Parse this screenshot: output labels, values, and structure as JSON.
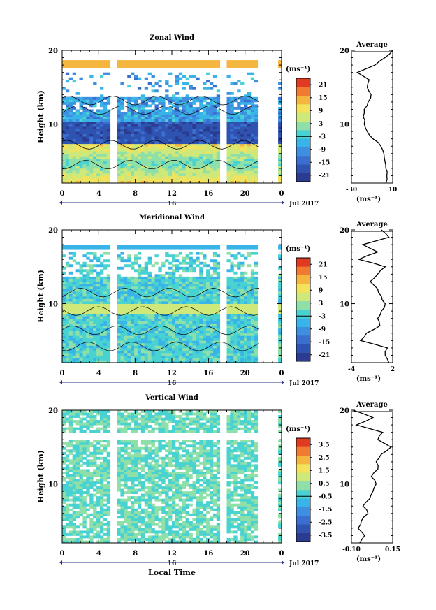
{
  "date_label": "Jul 2017",
  "time_axis_title": "Local Time",
  "day_label": "16",
  "time_ticks": [
    "0",
    "4",
    "8",
    "12",
    "16",
    "20",
    "0"
  ],
  "height_title": "Height (km)",
  "unit_label": "(ms⁻¹)",
  "average_title": "Average",
  "chart_data": [
    {
      "type": "heatmap",
      "title": "Zonal Wind",
      "xlabel": "",
      "ylabel": "Height (km)",
      "xlim": [
        0,
        24
      ],
      "ylim": [
        2,
        20
      ],
      "y_ticks": [
        "20",
        "10"
      ],
      "colorbar": {
        "unit": "(ms⁻¹)",
        "ticks": [
          "21",
          "15",
          "9",
          "3",
          "-3",
          "-9",
          "-15",
          "-21"
        ],
        "range": [
          -24,
          24
        ]
      },
      "profile": {
        "title": "Average",
        "xlabel": "(ms⁻¹)",
        "xlim": [
          -30,
          12
        ],
        "x_ticks": [
          "-30",
          "10"
        ],
        "y_ticks": [
          "20",
          "10"
        ],
        "heights": [
          2,
          3,
          4,
          5,
          6,
          7,
          8,
          9,
          10,
          11,
          12,
          13,
          14,
          15,
          16,
          17,
          18,
          19,
          20
        ],
        "values": [
          5,
          6,
          5,
          4,
          3,
          0,
          -8,
          -14,
          -17,
          -18,
          -17,
          -13,
          -10,
          -14,
          -12,
          -24,
          -6,
          4,
          12
        ]
      }
    },
    {
      "type": "heatmap",
      "title": "Meridional Wind",
      "xlabel": "",
      "ylabel": "Height (km)",
      "xlim": [
        0,
        24
      ],
      "ylim": [
        2,
        20
      ],
      "y_ticks": [
        "20",
        "10"
      ],
      "colorbar": {
        "unit": "(ms⁻¹)",
        "ticks": [
          "21",
          "15",
          "9",
          "3",
          "-3",
          "-9",
          "-15",
          "-21"
        ],
        "range": [
          -24,
          24
        ]
      },
      "profile": {
        "title": "Average",
        "xlabel": "(ms⁻¹)",
        "xlim": [
          -3,
          2.5
        ],
        "x_ticks": [
          "-4",
          "2"
        ],
        "y_ticks": [
          "20",
          "10"
        ],
        "heights": [
          2,
          3,
          4,
          5,
          6,
          7,
          8,
          9,
          10,
          11,
          12,
          13,
          14,
          15,
          16,
          17,
          18,
          19,
          20
        ],
        "values": [
          2,
          1.5,
          1.8,
          -1.8,
          -1.0,
          0.8,
          0.5,
          1.0,
          1.5,
          1.0,
          0.5,
          -0.5,
          0.5,
          1.5,
          -2.0,
          0.5,
          -1.5,
          2.0,
          1.0
        ]
      }
    },
    {
      "type": "heatmap",
      "title": "Vertical Wind",
      "xlabel": "Local Time",
      "ylabel": "Height (km)",
      "xlim": [
        0,
        24
      ],
      "ylim": [
        2,
        20
      ],
      "y_ticks": [
        "20",
        "10"
      ],
      "colorbar": {
        "unit": "(ms⁻¹)",
        "ticks": [
          "3.5",
          "2.5",
          "1.5",
          "0.5",
          "-0.5",
          "-1.5",
          "-2.5",
          "-3.5"
        ],
        "range": [
          -4,
          4
        ]
      },
      "profile": {
        "title": "Average",
        "xlabel": "(ms⁻¹)",
        "xlim": [
          -0.1,
          0.15
        ],
        "x_ticks": [
          "-0.10",
          "0.15"
        ],
        "y_ticks": [
          "20",
          "10"
        ],
        "heights": [
          2,
          3,
          4,
          5,
          6,
          7,
          8,
          9,
          10,
          11,
          12,
          13,
          14,
          15,
          16,
          17,
          18,
          19,
          20
        ],
        "values": [
          -0.05,
          -0.02,
          -0.06,
          -0.04,
          0.0,
          -0.03,
          0.01,
          0.03,
          0.05,
          0.02,
          0.06,
          0.05,
          0.08,
          0.14,
          0.06,
          0.09,
          -0.07,
          0.03,
          -0.09
        ]
      }
    }
  ]
}
